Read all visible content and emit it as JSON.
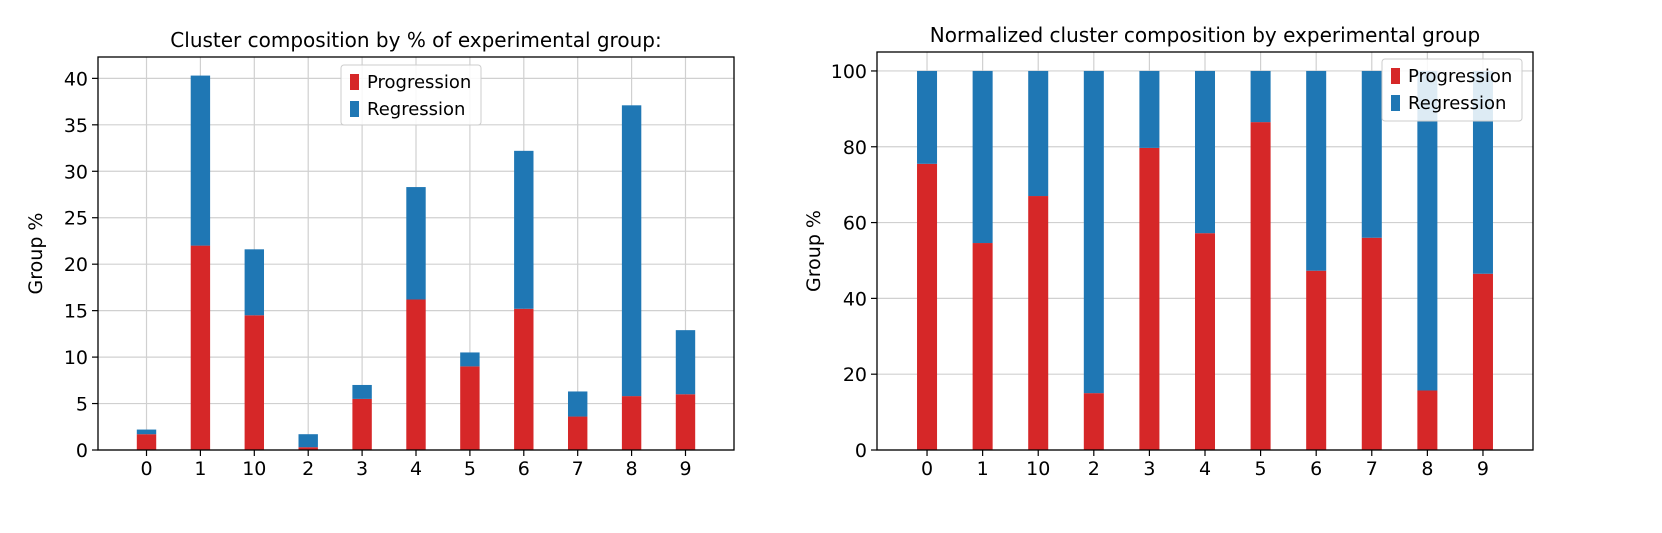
{
  "colors": {
    "progression": "#d62728",
    "regression": "#1f77b4"
  },
  "chart_data": [
    {
      "type": "bar",
      "stacked": true,
      "title": "Cluster composition by % of experimental group:",
      "xlabel": "",
      "ylabel": "Group %",
      "categories": [
        "0",
        "1",
        "10",
        "2",
        "3",
        "4",
        "5",
        "6",
        "7",
        "8",
        "9"
      ],
      "ylim": [
        0,
        42.3
      ],
      "yticks": [
        0,
        5,
        10,
        15,
        20,
        25,
        30,
        35,
        40
      ],
      "grid": true,
      "legend_position": "top-center",
      "series": [
        {
          "name": "Progression",
          "color": "#d62728",
          "values": [
            1.7,
            22.0,
            14.5,
            0.3,
            5.5,
            16.2,
            9.0,
            15.2,
            3.6,
            5.8,
            6.0
          ]
        },
        {
          "name": "Regression",
          "color": "#1f77b4",
          "values": [
            0.5,
            18.3,
            7.1,
            1.4,
            1.5,
            12.1,
            1.5,
            17.0,
            2.7,
            31.3,
            6.9
          ]
        }
      ]
    },
    {
      "type": "bar",
      "stacked": true,
      "title": "Normalized cluster composition by experimental group",
      "xlabel": "",
      "ylabel": "Group %",
      "categories": [
        "0",
        "1",
        "10",
        "2",
        "3",
        "4",
        "5",
        "6",
        "7",
        "8",
        "9"
      ],
      "ylim": [
        0,
        105
      ],
      "yticks": [
        0,
        20,
        40,
        60,
        80,
        100
      ],
      "grid": true,
      "legend_position": "top-right",
      "series": [
        {
          "name": "Progression",
          "color": "#d62728",
          "values": [
            75.5,
            54.6,
            67.0,
            15.0,
            79.7,
            57.2,
            86.5,
            47.3,
            56.0,
            15.7,
            46.5
          ]
        },
        {
          "name": "Regression",
          "color": "#1f77b4",
          "values": [
            24.5,
            45.4,
            33.0,
            85.0,
            20.3,
            42.8,
            13.5,
            52.7,
            44.0,
            84.3,
            53.5
          ]
        }
      ]
    }
  ]
}
